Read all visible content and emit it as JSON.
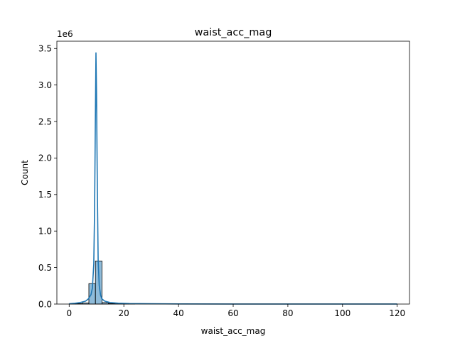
{
  "chart_data": {
    "type": "bar",
    "title": "waist_acc_mag",
    "xlabel": "waist_acc_mag",
    "ylabel": "Count",
    "y_offset_label": "1e6",
    "xlim": [
      -4.5,
      124.5
    ],
    "ylim": [
      0,
      3.6
    ],
    "x_ticks": [
      0,
      20,
      40,
      60,
      80,
      100,
      120
    ],
    "y_ticks": [
      0.0,
      0.5,
      1.0,
      1.5,
      2.0,
      2.5,
      3.0,
      3.5
    ],
    "y_tick_labels": [
      "0.0",
      "0.5",
      "1.0",
      "1.5",
      "2.0",
      "2.5",
      "3.0",
      "3.5"
    ],
    "bars": {
      "bin_edges": [
        0,
        2.4,
        4.8,
        7.2,
        9.6,
        12.0,
        14.4,
        16.8,
        19.2,
        21.6,
        24.0
      ],
      "values": [
        0.002,
        0.006,
        0.015,
        0.28,
        0.59,
        0.02,
        0.008,
        0.004,
        0.002,
        0.001
      ],
      "color": "#1f77b4",
      "fill_opacity": 0.5,
      "edge_color": "#000000"
    },
    "kde": {
      "color": "#1f77b4",
      "x": [
        0,
        2,
        4,
        6,
        7,
        8,
        8.5,
        9,
        9.3,
        9.6,
        9.8,
        10.0,
        10.3,
        10.6,
        11,
        11.5,
        12,
        13,
        15,
        18,
        22,
        30,
        40,
        60,
        80,
        100,
        120
      ],
      "y": [
        0.005,
        0.01,
        0.02,
        0.04,
        0.07,
        0.13,
        0.22,
        0.55,
        1.3,
        2.6,
        3.44,
        2.9,
        1.6,
        0.6,
        0.25,
        0.12,
        0.07,
        0.04,
        0.02,
        0.012,
        0.007,
        0.004,
        0.002,
        0.001,
        0.001,
        0.0005,
        0.0003
      ]
    },
    "grid": false,
    "legend": false
  }
}
